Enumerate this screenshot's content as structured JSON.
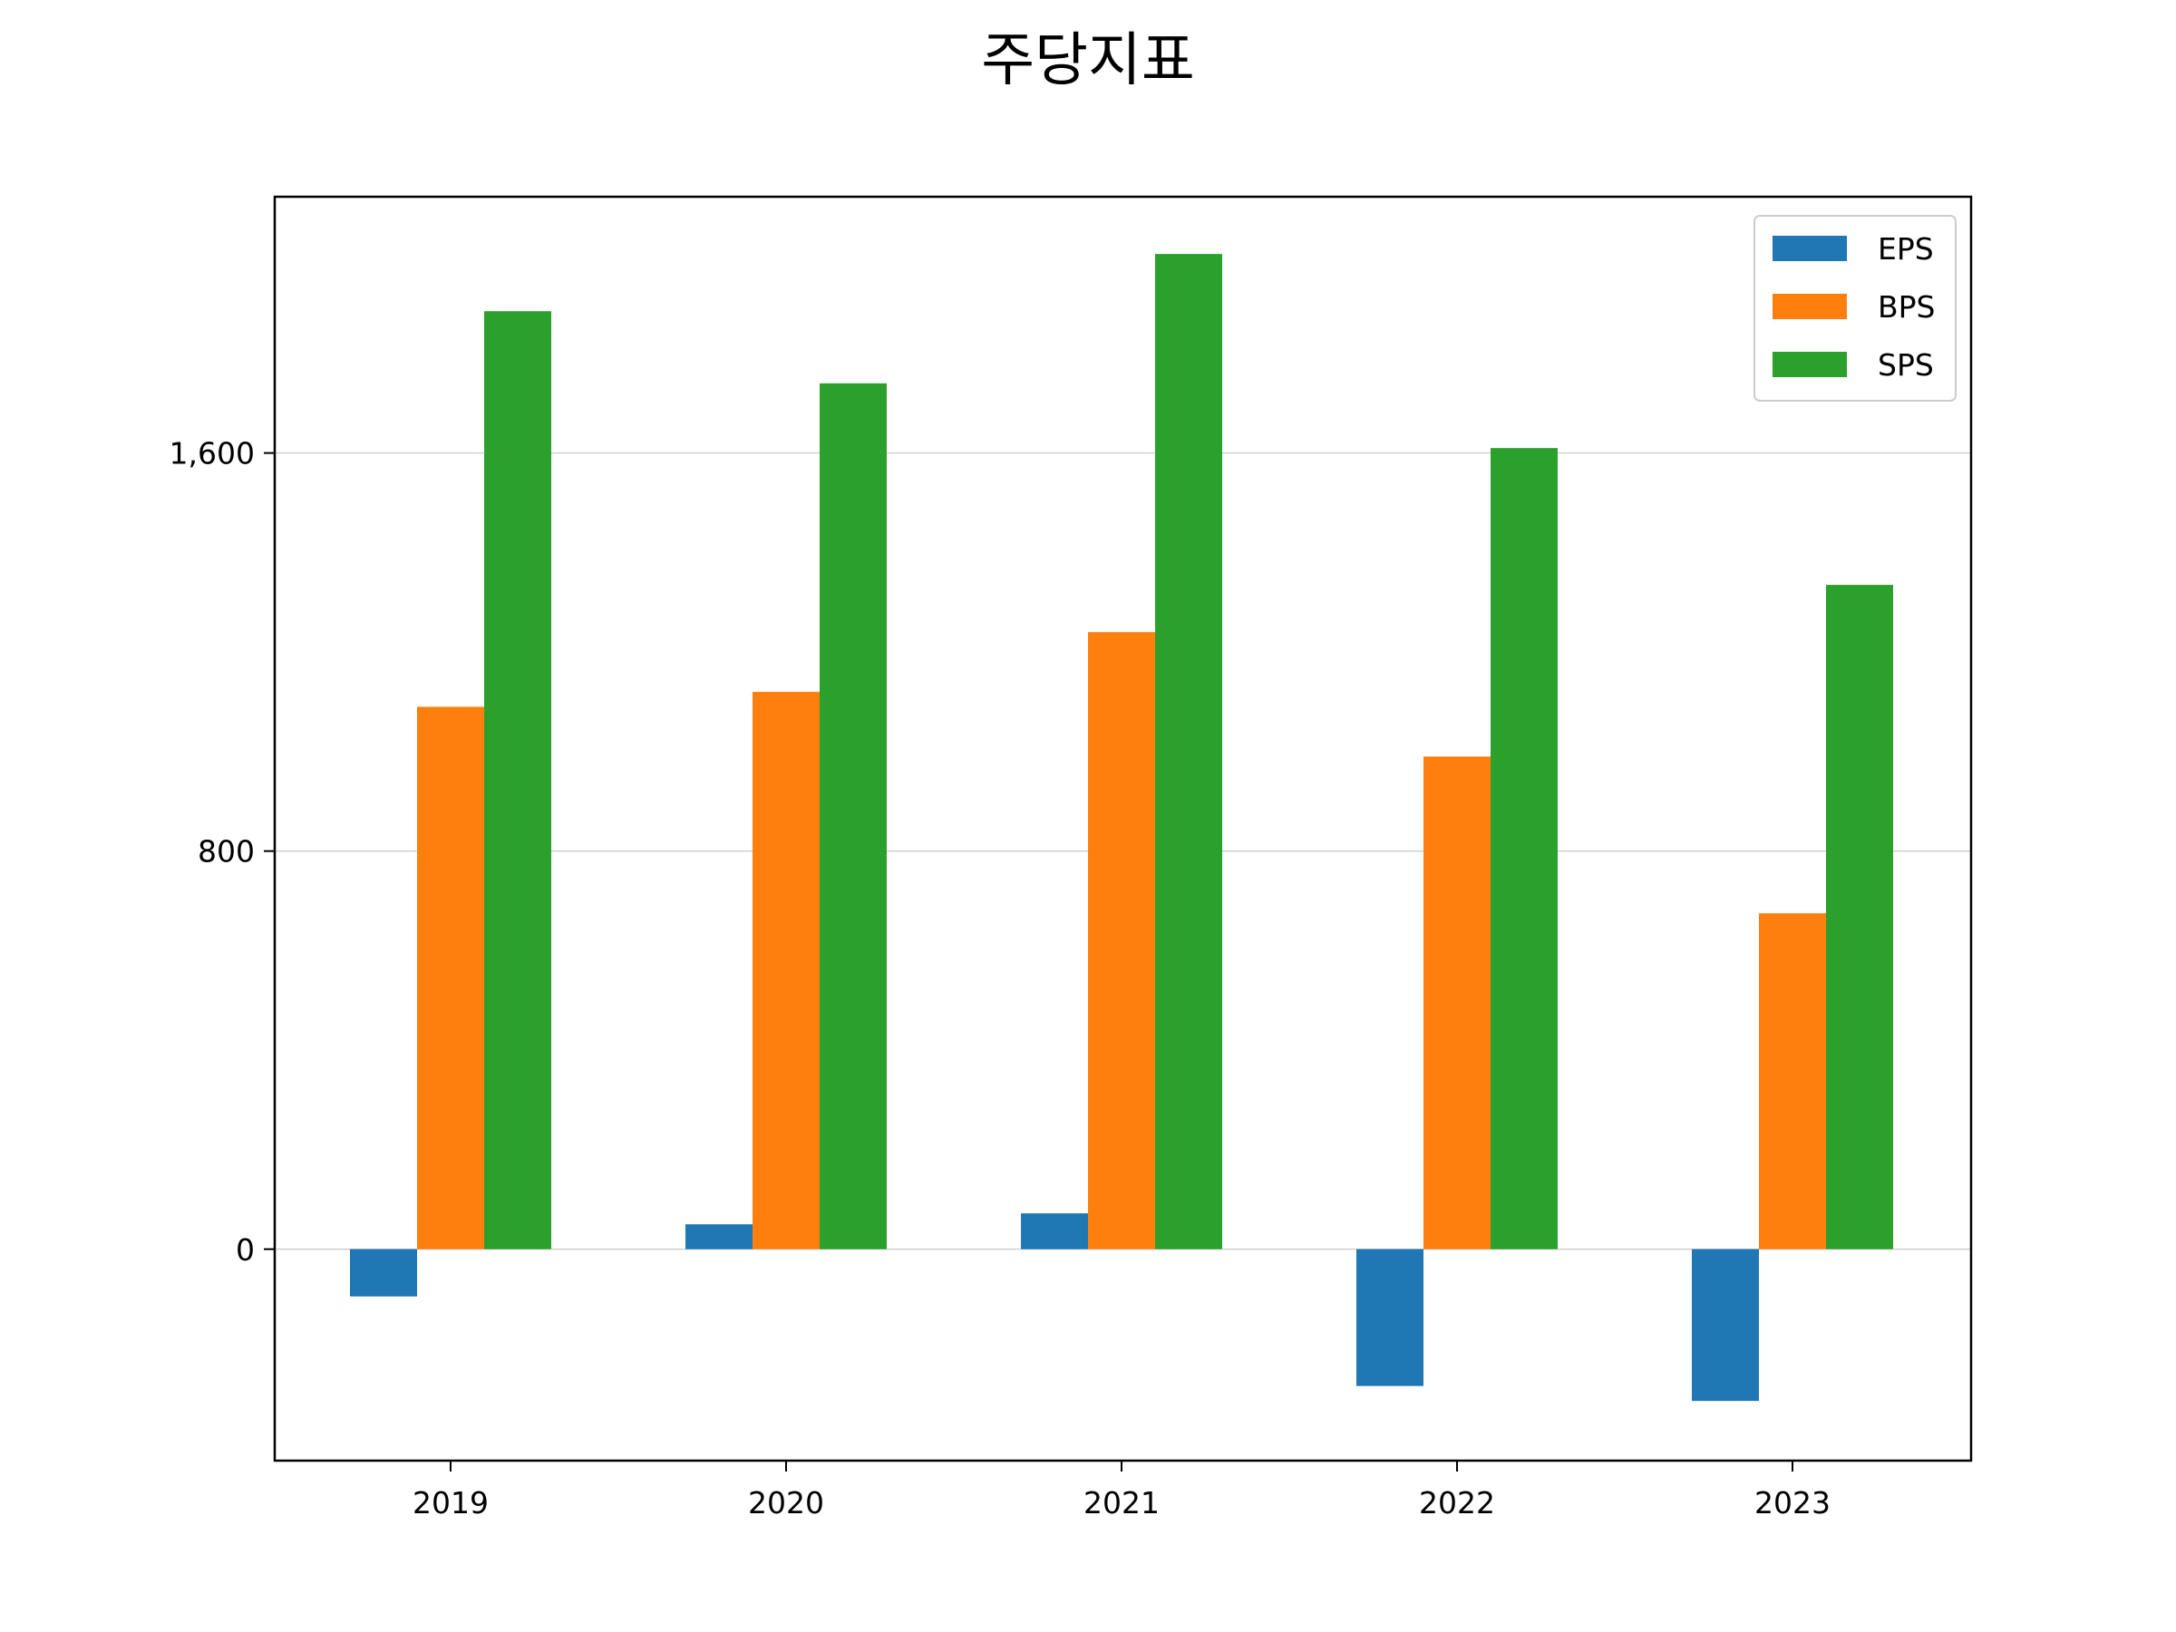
{
  "chart_data": {
    "type": "bar",
    "title": "주당지표",
    "xlabel": "",
    "ylabel": "",
    "categories": [
      "2019",
      "2020",
      "2021",
      "2022",
      "2023"
    ],
    "series": [
      {
        "name": "EPS",
        "color": "#1f77b4",
        "values": [
          -95,
          50,
          72,
          -275,
          -305
        ]
      },
      {
        "name": "BPS",
        "color": "#ff7f0e",
        "values": [
          1090,
          1120,
          1240,
          990,
          675
        ]
      },
      {
        "name": "SPS",
        "color": "#2ca02c",
        "values": [
          1885,
          1740,
          2000,
          1610,
          1335
        ]
      }
    ],
    "yticks": [
      0,
      800,
      1600
    ],
    "ytick_labels": [
      "0",
      "800",
      "1,600"
    ],
    "ylim": [
      -425,
      2115
    ],
    "grid": {
      "y": true,
      "x": false
    },
    "legend": {
      "position": "top-right"
    }
  }
}
